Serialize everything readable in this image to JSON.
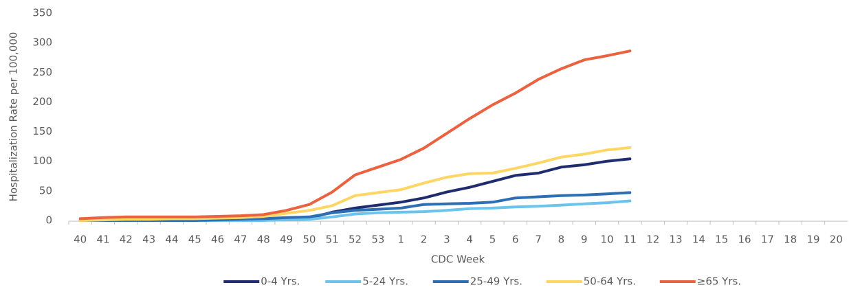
{
  "chart_data": {
    "type": "line",
    "x_label": "CDC Week",
    "y_label": "Hospitalization Rate per 100,000",
    "categories": [
      "40",
      "41",
      "42",
      "43",
      "44",
      "45",
      "46",
      "47",
      "48",
      "49",
      "50",
      "51",
      "52",
      "53",
      "1",
      "2",
      "3",
      "4",
      "5",
      "6",
      "7",
      "8",
      "9",
      "10",
      "11",
      "12",
      "13",
      "14",
      "15",
      "16",
      "17",
      "18",
      "19",
      "20"
    ],
    "ylim": [
      0,
      350
    ],
    "yticks": [
      0,
      50,
      100,
      150,
      200,
      250,
      300,
      350
    ],
    "legend": "bottom",
    "series": [
      {
        "name": "0-4 Yrs.",
        "color": "#1f2d6e",
        "values": [
          0,
          0,
          0,
          0,
          0,
          0,
          0,
          0,
          1,
          2,
          4,
          14,
          21,
          26,
          31,
          38,
          48,
          56,
          66,
          76,
          80,
          90,
          94,
          100,
          104,
          null,
          null,
          null,
          null,
          null,
          null,
          null,
          null,
          null
        ]
      },
      {
        "name": "5-24 Yrs.",
        "color": "#6cc4ec",
        "values": [
          0,
          0,
          0,
          0,
          0,
          0,
          0,
          0,
          0,
          1,
          2,
          6,
          11,
          13,
          14,
          15,
          17,
          20,
          21,
          23,
          24,
          26,
          28,
          30,
          33,
          null,
          null,
          null,
          null,
          null,
          null,
          null,
          null,
          null
        ]
      },
      {
        "name": "25-49 Yrs.",
        "color": "#2e6fb4",
        "values": [
          0,
          0,
          0,
          0,
          0,
          0,
          1,
          2,
          3,
          5,
          6,
          13,
          17,
          19,
          21,
          27,
          28,
          29,
          31,
          38,
          40,
          42,
          43,
          45,
          47,
          null,
          null,
          null,
          null,
          null,
          null,
          null,
          null,
          null
        ]
      },
      {
        "name": "50-64 Yrs.",
        "color": "#fdd663",
        "values": [
          0,
          1,
          2,
          2,
          3,
          3,
          4,
          5,
          7,
          12,
          17,
          25,
          42,
          47,
          52,
          63,
          73,
          79,
          80,
          88,
          97,
          107,
          112,
          119,
          123,
          null,
          null,
          null,
          null,
          null,
          null,
          null,
          null,
          null
        ]
      },
      {
        "name": "≥65 Yrs.",
        "color": "#ea6240",
        "values": [
          3,
          5,
          6,
          6,
          6,
          6,
          7,
          8,
          10,
          17,
          27,
          48,
          77,
          90,
          103,
          122,
          147,
          172,
          195,
          215,
          238,
          256,
          271,
          278,
          286,
          null,
          null,
          null,
          null,
          null,
          null,
          null,
          null,
          null
        ]
      }
    ]
  }
}
